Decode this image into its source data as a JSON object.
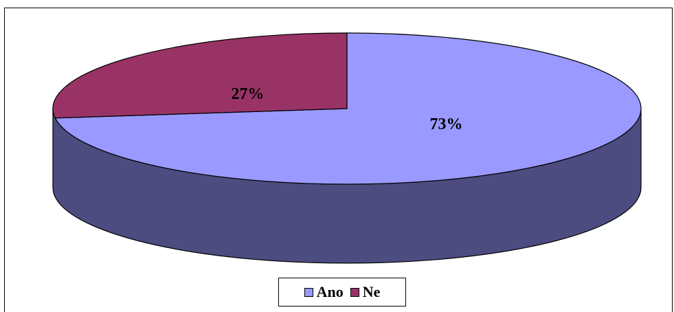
{
  "chart_data": {
    "type": "pie",
    "title": "",
    "three_d": true,
    "slices": [
      {
        "name": "Ano",
        "value": 73,
        "label": "73%",
        "color": "#9999ff"
      },
      {
        "name": "Ne",
        "value": 27,
        "label": "27%",
        "color": "#993366"
      }
    ],
    "side_color": "#4c4c80",
    "legend_position": "bottom",
    "legend": [
      {
        "label": "Ano",
        "color": "#9999ff"
      },
      {
        "label": "Ne",
        "color": "#993366"
      }
    ]
  }
}
